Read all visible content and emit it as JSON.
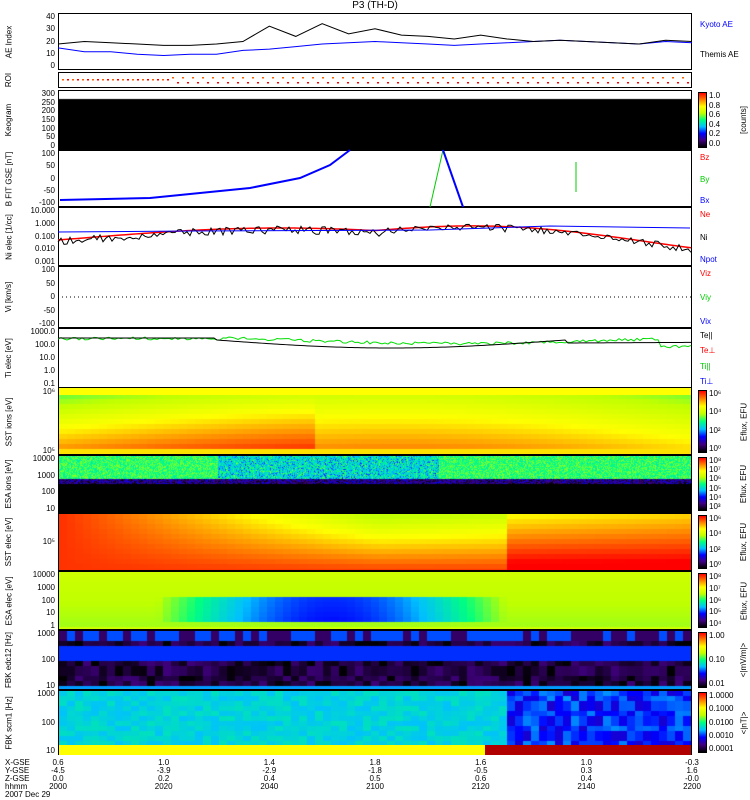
{
  "title": "P3 (TH-D)",
  "chart_data": [
    {
      "type": "line",
      "ylabel": "AE Index",
      "ylim": [
        0,
        40
      ],
      "yticks": [
        "40",
        "30",
        "20",
        "10",
        "0"
      ],
      "x_minutes": [
        0,
        5,
        10,
        15,
        20,
        25,
        30,
        35,
        40,
        45,
        50,
        55,
        60,
        65,
        70,
        75,
        80,
        85,
        90,
        95,
        100,
        105,
        110,
        115,
        120
      ],
      "series": [
        {
          "name": "Kyoto AE",
          "color": "#0000ff",
          "values": [
            15,
            12,
            12,
            10,
            9,
            10,
            10,
            13,
            14,
            16,
            18,
            19,
            20,
            19,
            18,
            17,
            18,
            19,
            20,
            21,
            20,
            19,
            18,
            20,
            19
          ]
        },
        {
          "name": "Themis AE",
          "color": "#000000",
          "values": [
            18,
            20,
            19,
            18,
            17,
            17,
            18,
            20,
            32,
            24,
            34,
            26,
            30,
            25,
            24,
            22,
            25,
            22,
            20,
            21,
            20,
            19,
            18,
            21,
            20
          ]
        }
      ]
    },
    {
      "type": "heatmap",
      "ylabel": "ROI"
    },
    {
      "type": "heatmap",
      "ylabel": "Keogram",
      "yticks": [
        "300",
        "250",
        "200",
        "150",
        "100",
        "50",
        "0"
      ],
      "colorbar": {
        "label": "[counts]",
        "ticks": [
          "1.0",
          "0.8",
          "0.6",
          "0.4",
          "0.2",
          "0.0"
        ]
      }
    },
    {
      "type": "line",
      "ylabel": "B FIT GSE [nT]",
      "yticks": [
        "100",
        "50",
        "0",
        "-50",
        "-100"
      ],
      "ylim": [
        -100,
        100
      ],
      "legend": [
        "Bz",
        "By",
        "Bx"
      ],
      "legend_colors": [
        "#ff0000",
        "#00cc00",
        "#0000ff"
      ]
    },
    {
      "type": "line",
      "ylabel": "Ni elec [1/cc]",
      "yticks": [
        "10.000",
        "1.000",
        "0.100",
        "0.010",
        "0.001"
      ],
      "legend": [
        "Ne",
        "Ni",
        "Npot"
      ],
      "legend_colors": [
        "#ff0000",
        "#000000",
        "#0000ff"
      ]
    },
    {
      "type": "line",
      "ylabel": "Vi [km/s]",
      "yticks": [
        "100",
        "50",
        "0",
        "-50",
        "-100"
      ],
      "ylim": [
        -100,
        100
      ],
      "legend": [
        "Viz",
        "Viy",
        "Vix"
      ],
      "legend_colors": [
        "#ff0000",
        "#00cc00",
        "#0000ff"
      ]
    },
    {
      "type": "line",
      "ylabel": "Ti elec [eV]",
      "yticks": [
        "1000.0",
        "100.0",
        "10.0",
        "1.0",
        "0.1"
      ],
      "legend": [
        "Te||",
        "Te⊥",
        "Ti||",
        "Ti⊥"
      ],
      "legend_colors": [
        "#000000",
        "#ff0000",
        "#00cc00",
        "#0000ff"
      ]
    },
    {
      "type": "heatmap",
      "ylabel": "SST ions [eV]",
      "yticks": [
        "10⁶",
        "10⁵"
      ],
      "colorbar": {
        "label": "Eflux, EFU",
        "ticks": [
          "10⁶",
          "10⁴",
          "10²",
          "10⁰"
        ]
      }
    },
    {
      "type": "heatmap",
      "ylabel": "ESA ions [eV]",
      "yticks": [
        "10000",
        "1000",
        "100",
        "10"
      ],
      "colorbar": {
        "label": "Eflux, EFU",
        "ticks": [
          "10⁸",
          "10⁷",
          "10⁶",
          "10⁵",
          "10⁴",
          "10³"
        ]
      }
    },
    {
      "type": "heatmap",
      "ylabel": "SST elec [eV]",
      "yticks": [
        "10⁵"
      ],
      "colorbar": {
        "label": "Eflux, EFU",
        "ticks": [
          "10⁶",
          "10⁴",
          "10²",
          "10⁰"
        ]
      }
    },
    {
      "type": "heatmap",
      "ylabel": "ESA elec [eV]",
      "yticks": [
        "10000",
        "1000",
        "100",
        "10",
        "1"
      ],
      "colorbar": {
        "label": "Eflux, EFU",
        "ticks": [
          "10⁸",
          "10⁷",
          "10⁶",
          "10⁵",
          "10⁴"
        ]
      }
    },
    {
      "type": "heatmap",
      "ylabel": "FBK edc12 [Hz]",
      "yticks": [
        "1000",
        "100",
        "10"
      ],
      "colorbar": {
        "label": "<|mV/m|>",
        "ticks": [
          "1.00",
          "0.10",
          "0.01"
        ]
      }
    },
    {
      "type": "heatmap",
      "ylabel": "FBK scm1 [Hz]",
      "yticks": [
        "1000",
        "100",
        "10"
      ],
      "colorbar": {
        "label": "<|nT|>",
        "ticks": [
          "1.0000",
          "0.1000",
          "0.0100",
          "0.0010",
          "0.0001"
        ]
      }
    }
  ],
  "xaxis": {
    "row_labels": [
      "X-GSE",
      "Y-GSE",
      "Z-GSE",
      "hhmm"
    ],
    "date": "2007 Dec 29",
    "ticks": [
      [
        "0.6",
        "-4.5",
        "0.0",
        "2000"
      ],
      [
        "1.0",
        "-3.9",
        "0.2",
        "2020"
      ],
      [
        "1.4",
        "-2.9",
        "0.4",
        "2040"
      ],
      [
        "1.8",
        "-1.8",
        "0.5",
        "2100"
      ],
      [
        "1.6",
        "-0.5",
        "0.6",
        "2120"
      ],
      [
        "1.0",
        "0.3",
        "0.4",
        "2140"
      ],
      [
        "-0.3",
        "1.6",
        "-0.0",
        "2200"
      ]
    ]
  }
}
